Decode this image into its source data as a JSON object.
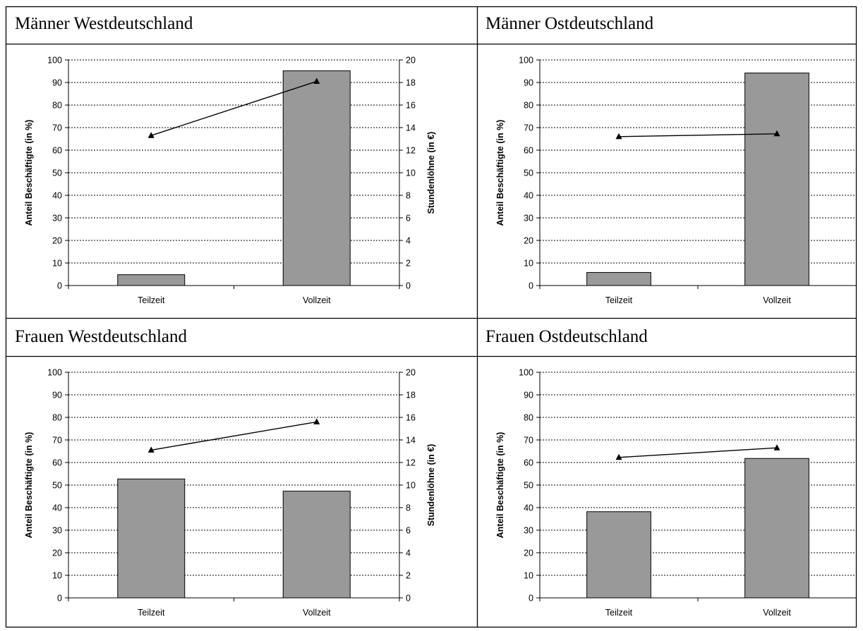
{
  "panels": [
    {
      "title": "Männer Westdeutschland"
    },
    {
      "title": "Männer Ostdeutschland"
    },
    {
      "title": "Frauen Westdeutschland"
    },
    {
      "title": "Frauen Ostdeutschland"
    }
  ],
  "chart_data": [
    {
      "type": "bar",
      "title": "Männer Westdeutschland",
      "categories": [
        "Teilzeit",
        "Vollzeit"
      ],
      "ylabel": "Anteil Beschäftigte (in %)",
      "y2label": "Stundenlöhne (in €)",
      "ylim": [
        0,
        100
      ],
      "y2lim": [
        0,
        20
      ],
      "yticks": [
        "0",
        "10",
        "20",
        "30",
        "40",
        "50",
        "60",
        "70",
        "80",
        "90",
        "100"
      ],
      "y2ticks": [
        "0",
        "2",
        "4",
        "6",
        "8",
        "10",
        "12",
        "14",
        "16",
        "18",
        "20"
      ],
      "grid": true,
      "series": [
        {
          "type": "bar",
          "axis": "left",
          "values": [
            4.8,
            95.2
          ]
        },
        {
          "type": "line",
          "axis": "right",
          "marker": "triangle",
          "values": [
            13.3,
            18.1
          ]
        }
      ]
    },
    {
      "type": "bar",
      "title": "Männer Ostdeutschland",
      "categories": [
        "Teilzeit",
        "Vollzeit"
      ],
      "ylabel": "Anteil Beschäftigte (in %)",
      "ylim": [
        0,
        100
      ],
      "yticks": [
        "0",
        "10",
        "20",
        "30",
        "40",
        "50",
        "60",
        "70",
        "80",
        "90",
        "100"
      ],
      "grid": true,
      "series": [
        {
          "type": "bar",
          "axis": "left",
          "values": [
            5.8,
            94.2
          ]
        },
        {
          "type": "line",
          "axis": "right",
          "marker": "triangle",
          "values": [
            13.2,
            13.45
          ]
        }
      ],
      "y2lim": [
        0,
        20
      ]
    },
    {
      "type": "bar",
      "title": "Frauen Westdeutschland",
      "categories": [
        "Teilzeit",
        "Vollzeit"
      ],
      "ylabel": "Anteil Beschäftigte (in %)",
      "y2label": "Stundenlöhne (in €)",
      "ylim": [
        0,
        100
      ],
      "y2lim": [
        0,
        20
      ],
      "yticks": [
        "0",
        "10",
        "20",
        "30",
        "40",
        "50",
        "60",
        "70",
        "80",
        "90",
        "100"
      ],
      "y2ticks": [
        "0",
        "2",
        "4",
        "6",
        "8",
        "10",
        "12",
        "14",
        "16",
        "18",
        "20"
      ],
      "grid": true,
      "series": [
        {
          "type": "bar",
          "axis": "left",
          "values": [
            52.7,
            47.3
          ]
        },
        {
          "type": "line",
          "axis": "right",
          "marker": "triangle",
          "values": [
            13.1,
            15.6
          ]
        }
      ]
    },
    {
      "type": "bar",
      "title": "Frauen Ostdeutschland",
      "categories": [
        "Teilzeit",
        "Vollzeit"
      ],
      "ylabel": "Anteil Beschäftigte (in %)",
      "ylim": [
        0,
        100
      ],
      "yticks": [
        "0",
        "10",
        "20",
        "30",
        "40",
        "50",
        "60",
        "70",
        "80",
        "90",
        "100"
      ],
      "grid": true,
      "series": [
        {
          "type": "bar",
          "axis": "left",
          "values": [
            38.2,
            61.8
          ]
        },
        {
          "type": "line",
          "axis": "right",
          "marker": "triangle",
          "values": [
            12.45,
            13.3
          ]
        }
      ],
      "y2lim": [
        0,
        20
      ]
    }
  ],
  "colors": {
    "bar_fill": "#999999",
    "bar_stroke": "#000000",
    "line": "#000000",
    "grid": "#000000",
    "border": "#000000"
  }
}
